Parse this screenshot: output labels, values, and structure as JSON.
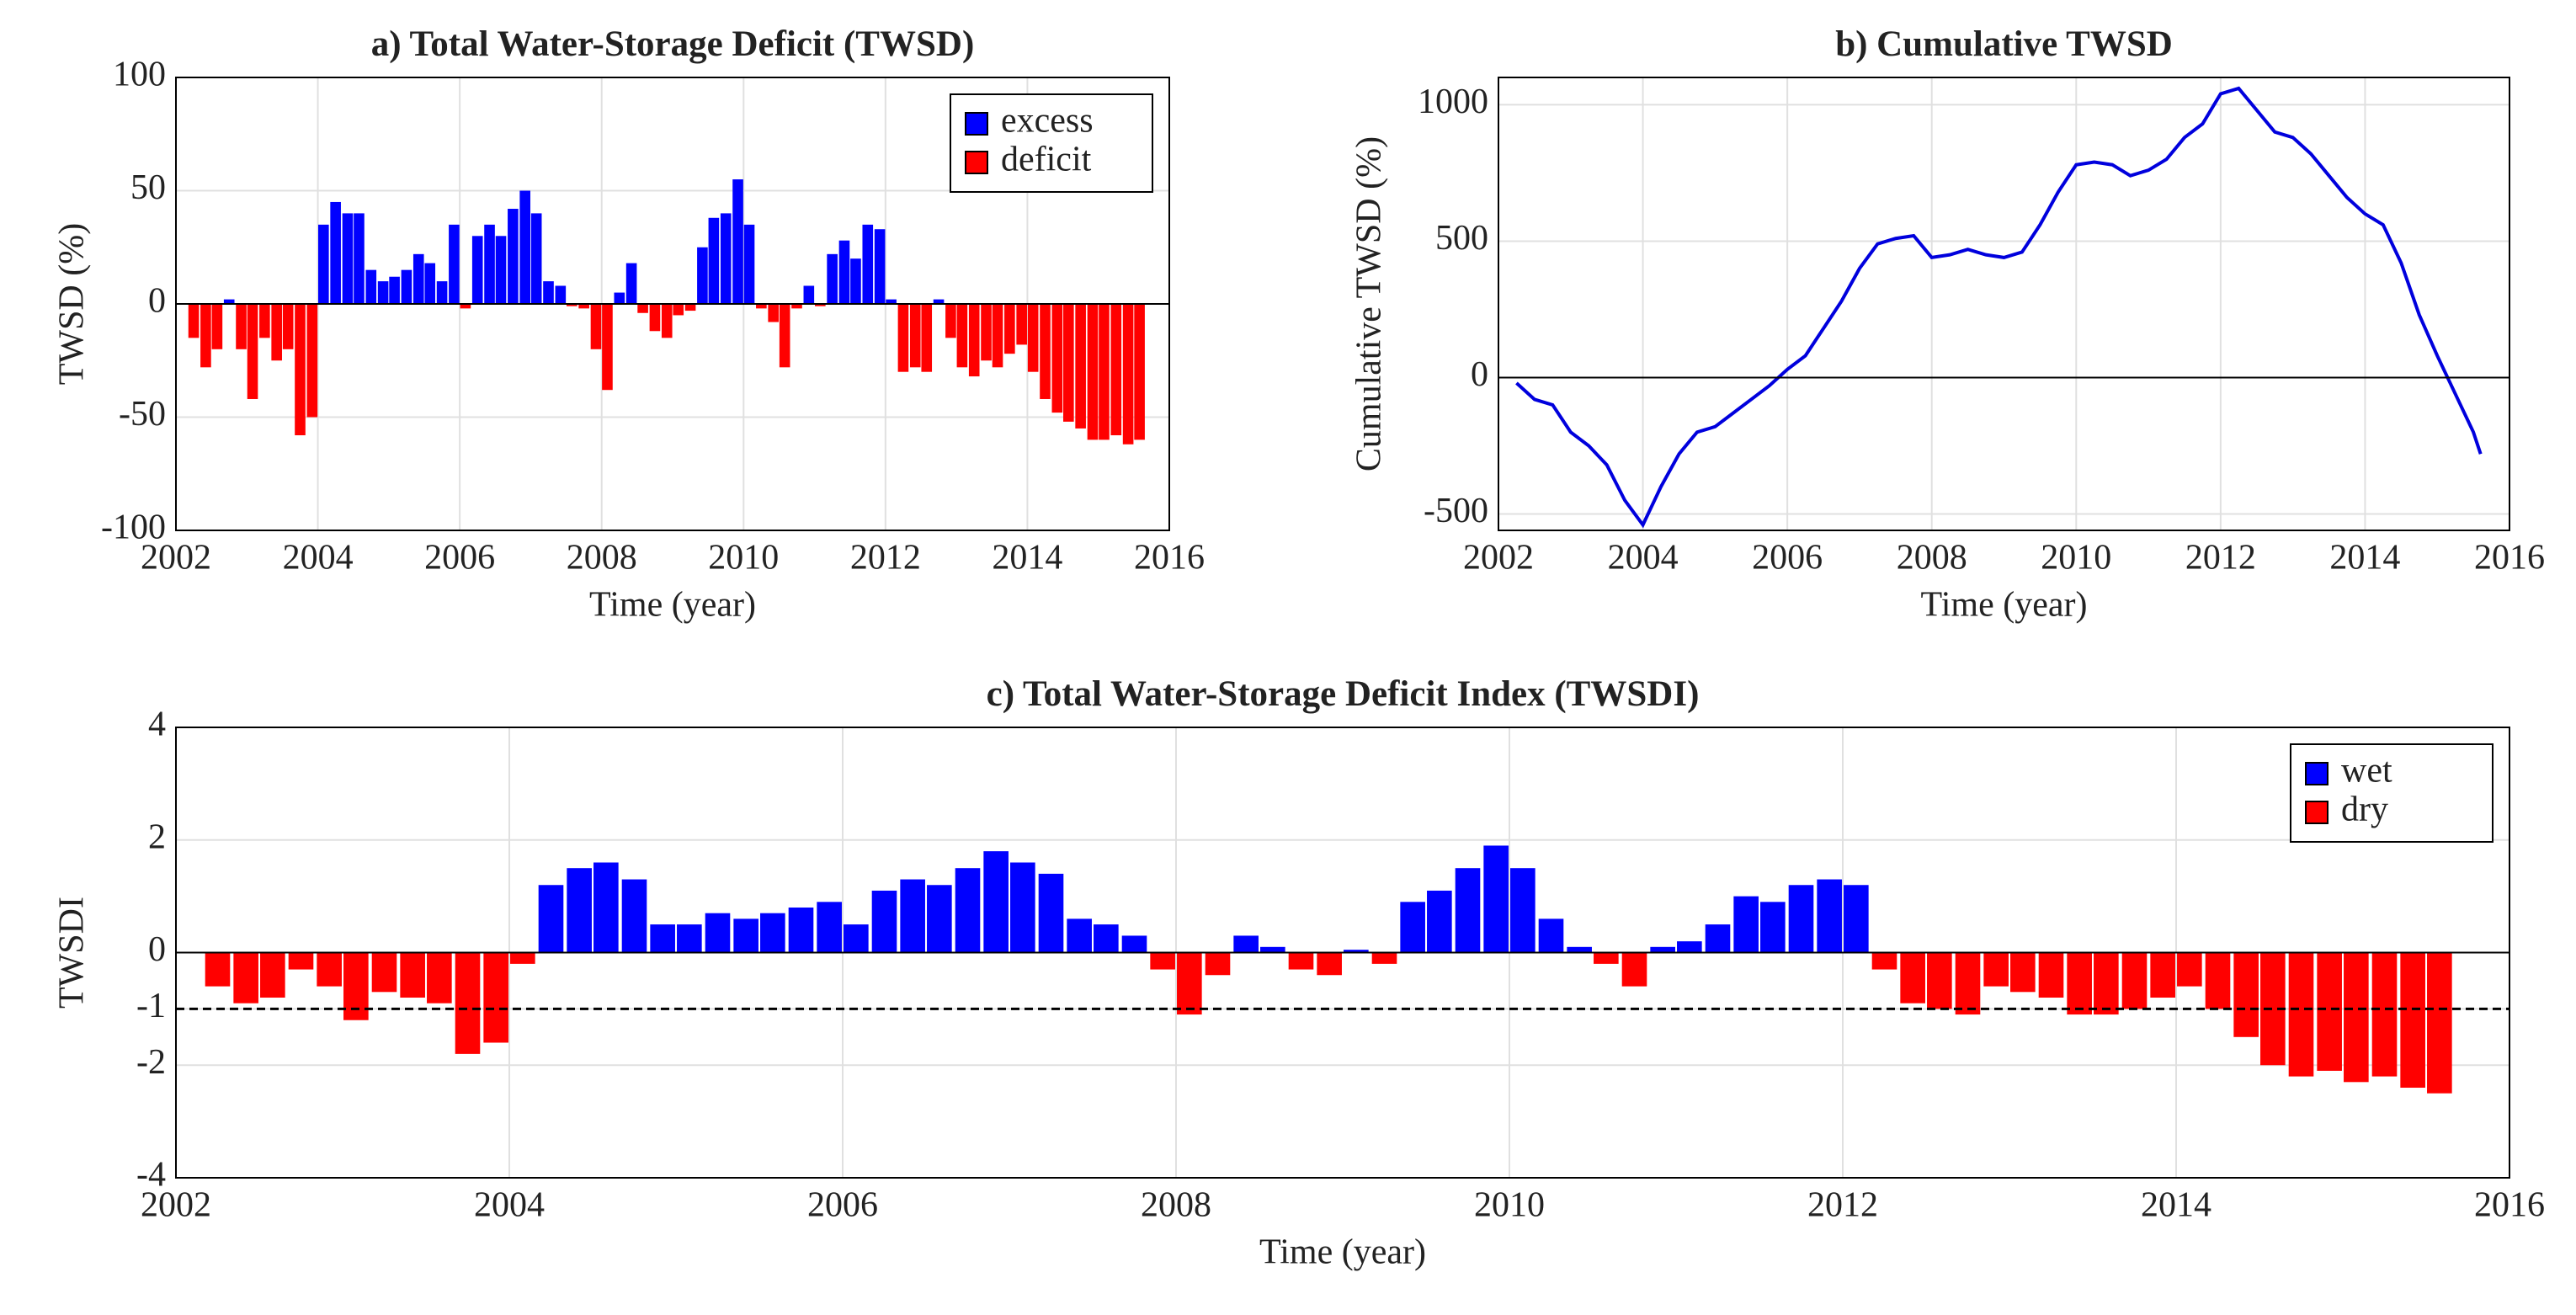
{
  "chart_data": [
    {
      "type": "bar",
      "title": "a) Total Water-Storage Deficit (TWSD)",
      "xlabel": "Time (year)",
      "ylabel": "TWSD (%)",
      "x": [
        2002.25,
        2002.42,
        2002.58,
        2002.75,
        2002.92,
        2003.08,
        2003.25,
        2003.42,
        2003.58,
        2003.75,
        2003.92,
        2004.08,
        2004.25,
        2004.42,
        2004.58,
        2004.75,
        2004.92,
        2005.08,
        2005.25,
        2005.42,
        2005.58,
        2005.75,
        2005.92,
        2006.08,
        2006.25,
        2006.42,
        2006.58,
        2006.75,
        2006.92,
        2007.08,
        2007.25,
        2007.42,
        2007.58,
        2007.75,
        2007.92,
        2008.08,
        2008.25,
        2008.42,
        2008.58,
        2008.75,
        2008.92,
        2009.08,
        2009.25,
        2009.42,
        2009.58,
        2009.75,
        2009.92,
        2010.08,
        2010.25,
        2010.42,
        2010.58,
        2010.75,
        2010.92,
        2011.08,
        2011.25,
        2011.42,
        2011.58,
        2011.75,
        2011.92,
        2012.08,
        2012.25,
        2012.42,
        2012.58,
        2012.75,
        2012.92,
        2013.08,
        2013.25,
        2013.42,
        2013.58,
        2013.75,
        2013.92,
        2014.08,
        2014.25,
        2014.42,
        2014.58,
        2014.75,
        2014.92,
        2015.08,
        2015.25,
        2015.42,
        2015.58
      ],
      "values": [
        -15,
        -28,
        -20,
        2,
        -20,
        -42,
        -15,
        -25,
        -20,
        -58,
        -50,
        35,
        45,
        40,
        40,
        15,
        10,
        12,
        15,
        22,
        18,
        10,
        35,
        -2,
        30,
        35,
        30,
        42,
        50,
        40,
        10,
        8,
        -1,
        -2,
        -20,
        -38,
        5,
        18,
        -4,
        -12,
        -15,
        -5,
        -3,
        25,
        38,
        40,
        55,
        35,
        -2,
        -8,
        -28,
        -2,
        8,
        -1,
        22,
        28,
        20,
        35,
        33,
        2,
        -30,
        -28,
        -30,
        2,
        -15,
        -28,
        -32,
        -25,
        -28,
        -22,
        -18,
        -30,
        -42,
        -48,
        -52,
        -55,
        -60,
        -60,
        -58,
        -62,
        -60
      ],
      "legend": [
        {
          "name": "excess",
          "color": "#0000ff"
        },
        {
          "name": "deficit",
          "color": "#ff0000"
        }
      ],
      "legend_position": "upper right",
      "xlim": [
        2002,
        2016
      ],
      "xticks": [
        2002,
        2004,
        2006,
        2008,
        2010,
        2012,
        2014,
        2016
      ],
      "ylim": [
        -100,
        100
      ],
      "yticks": [
        -100,
        -50,
        0,
        50,
        100
      ],
      "grid": true
    },
    {
      "type": "line",
      "title": "b) Cumulative TWSD",
      "xlabel": "Time (year)",
      "ylabel": "Cumulative TWSD (%)",
      "color": "#0000dd",
      "x": [
        2002.25,
        2002.5,
        2002.75,
        2003,
        2003.25,
        2003.5,
        2003.75,
        2004,
        2004.25,
        2004.5,
        2004.75,
        2005,
        2005.25,
        2005.5,
        2005.75,
        2006,
        2006.25,
        2006.5,
        2006.75,
        2007,
        2007.25,
        2007.5,
        2007.75,
        2008,
        2008.25,
        2008.5,
        2008.75,
        2009,
        2009.25,
        2009.5,
        2009.75,
        2010,
        2010.25,
        2010.5,
        2010.75,
        2011,
        2011.25,
        2011.5,
        2011.75,
        2012,
        2012.25,
        2012.5,
        2012.75,
        2013,
        2013.25,
        2013.5,
        2013.75,
        2014,
        2014.25,
        2014.5,
        2014.75,
        2015,
        2015.25,
        2015.5,
        2015.6
      ],
      "values": [
        -20,
        -80,
        -100,
        -200,
        -250,
        -320,
        -450,
        -540,
        -400,
        -280,
        -200,
        -180,
        -130,
        -80,
        -30,
        30,
        80,
        180,
        280,
        400,
        490,
        510,
        520,
        440,
        450,
        470,
        450,
        440,
        460,
        560,
        680,
        780,
        790,
        780,
        740,
        760,
        800,
        880,
        930,
        1040,
        1060,
        980,
        900,
        880,
        820,
        740,
        660,
        600,
        560,
        420,
        230,
        80,
        -60,
        -200,
        -280
      ],
      "xlim": [
        2002,
        2016
      ],
      "xticks": [
        2002,
        2004,
        2006,
        2008,
        2010,
        2012,
        2014,
        2016
      ],
      "ylim": [
        -560,
        1100
      ],
      "yticks": [
        -500,
        0,
        500,
        1000
      ],
      "grid": true
    },
    {
      "type": "bar",
      "title": "c) Total Water-Storage Deficit Index (TWSDI)",
      "xlabel": "Time (year)",
      "ylabel": "TWSDI",
      "x": [
        2002.25,
        2002.42,
        2002.58,
        2002.75,
        2002.92,
        2003.08,
        2003.25,
        2003.42,
        2003.58,
        2003.75,
        2003.92,
        2004.08,
        2004.25,
        2004.42,
        2004.58,
        2004.75,
        2004.92,
        2005.08,
        2005.25,
        2005.42,
        2005.58,
        2005.75,
        2005.92,
        2006.08,
        2006.25,
        2006.42,
        2006.58,
        2006.75,
        2006.92,
        2007.08,
        2007.25,
        2007.42,
        2007.58,
        2007.75,
        2007.92,
        2008.08,
        2008.25,
        2008.42,
        2008.58,
        2008.75,
        2008.92,
        2009.08,
        2009.25,
        2009.42,
        2009.58,
        2009.75,
        2009.92,
        2010.08,
        2010.25,
        2010.42,
        2010.58,
        2010.75,
        2010.92,
        2011.08,
        2011.25,
        2011.42,
        2011.58,
        2011.75,
        2011.92,
        2012.08,
        2012.25,
        2012.42,
        2012.58,
        2012.75,
        2012.92,
        2013.08,
        2013.25,
        2013.42,
        2013.58,
        2013.75,
        2013.92,
        2014.08,
        2014.25,
        2014.42,
        2014.58,
        2014.75,
        2014.92,
        2015.08,
        2015.25,
        2015.42,
        2015.58
      ],
      "values": [
        -0.6,
        -0.9,
        -0.8,
        -0.3,
        -0.6,
        -1.2,
        -0.7,
        -0.8,
        -0.9,
        -1.8,
        -1.6,
        -0.2,
        1.2,
        1.5,
        1.6,
        1.3,
        0.5,
        0.5,
        0.7,
        0.6,
        0.7,
        0.8,
        0.9,
        0.5,
        1.1,
        1.3,
        1.2,
        1.5,
        1.8,
        1.6,
        1.4,
        0.6,
        0.5,
        0.3,
        -0.3,
        -1.1,
        -0.4,
        0.3,
        0.1,
        -0.3,
        -0.4,
        0.05,
        -0.2,
        0.9,
        1.1,
        1.5,
        1.9,
        1.5,
        0.6,
        0.1,
        -0.2,
        -0.6,
        0.1,
        0.2,
        0.5,
        1.0,
        0.9,
        1.2,
        1.3,
        1.2,
        -0.3,
        -0.9,
        -1.0,
        -1.1,
        -0.6,
        -0.7,
        -0.8,
        -1.1,
        -1.1,
        -1.0,
        -0.8,
        -0.6,
        -1.0,
        -1.5,
        -2.0,
        -2.2,
        -2.1,
        -2.3,
        -2.2,
        -2.4,
        -2.5
      ],
      "legend": [
        {
          "name": "wet",
          "color": "#0000ff"
        },
        {
          "name": "dry",
          "color": "#ff0000"
        }
      ],
      "legend_position": "upper right",
      "reference_line": -1,
      "xlim": [
        2002,
        2016
      ],
      "xticks": [
        2002,
        2004,
        2006,
        2008,
        2010,
        2012,
        2014,
        2016
      ],
      "ylim": [
        -4,
        4
      ],
      "yticks": [
        -4,
        -2,
        -1,
        0,
        2,
        4
      ],
      "grid": true
    }
  ]
}
